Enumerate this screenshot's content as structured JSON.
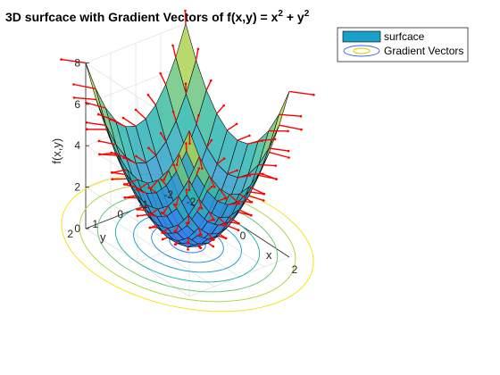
{
  "chart_data": {
    "type": "surface3d",
    "title": {
      "main": "3D surfcace with Gradient Vectors of f(x,y) = x",
      "sup1": "2",
      "mid": " + y",
      "sup2": "2"
    },
    "function": "x^2 + y^2",
    "xlabel": "x",
    "ylabel": "y",
    "zlabel": "f(x,y)",
    "xlim": [
      -2,
      2
    ],
    "ylim": [
      -2,
      2
    ],
    "zlim": [
      0,
      8
    ],
    "x_ticks": [
      "-2",
      "0",
      "2"
    ],
    "x_tick_values": [
      -2,
      0,
      2
    ],
    "y_ticks": [
      "-2",
      "-1",
      "0",
      "1",
      "2"
    ],
    "y_tick_values": [
      -2,
      -1,
      0,
      1,
      2
    ],
    "z_ticks": [
      "0",
      "2",
      "4",
      "6",
      "8"
    ],
    "z_tick_values": [
      0,
      2,
      4,
      6,
      8
    ],
    "grid_x": [
      -2,
      -1.6,
      -1.2,
      -0.8,
      -0.4,
      0,
      0.4,
      0.8,
      1.2,
      1.6,
      2
    ],
    "grid_y": [
      -2,
      -1.6,
      -1.2,
      -0.8,
      -0.4,
      0,
      0.4,
      0.8,
      1.2,
      1.6,
      2
    ],
    "contour_levels": [
      0.5,
      1,
      1.5,
      2,
      2.5,
      3,
      3.5
    ],
    "grid": true,
    "legend": {
      "placement": "top-right",
      "entries": [
        "surfcace",
        "Gradient Vectors"
      ]
    },
    "colors": {
      "surface_low": "#2f7bf0",
      "surface_mid": "#26b7a9",
      "surface_high": "#f5e31a",
      "mesh_edge": "#000000",
      "vectors": "#ff0000",
      "legend_surface": "#1aa0c8"
    }
  }
}
